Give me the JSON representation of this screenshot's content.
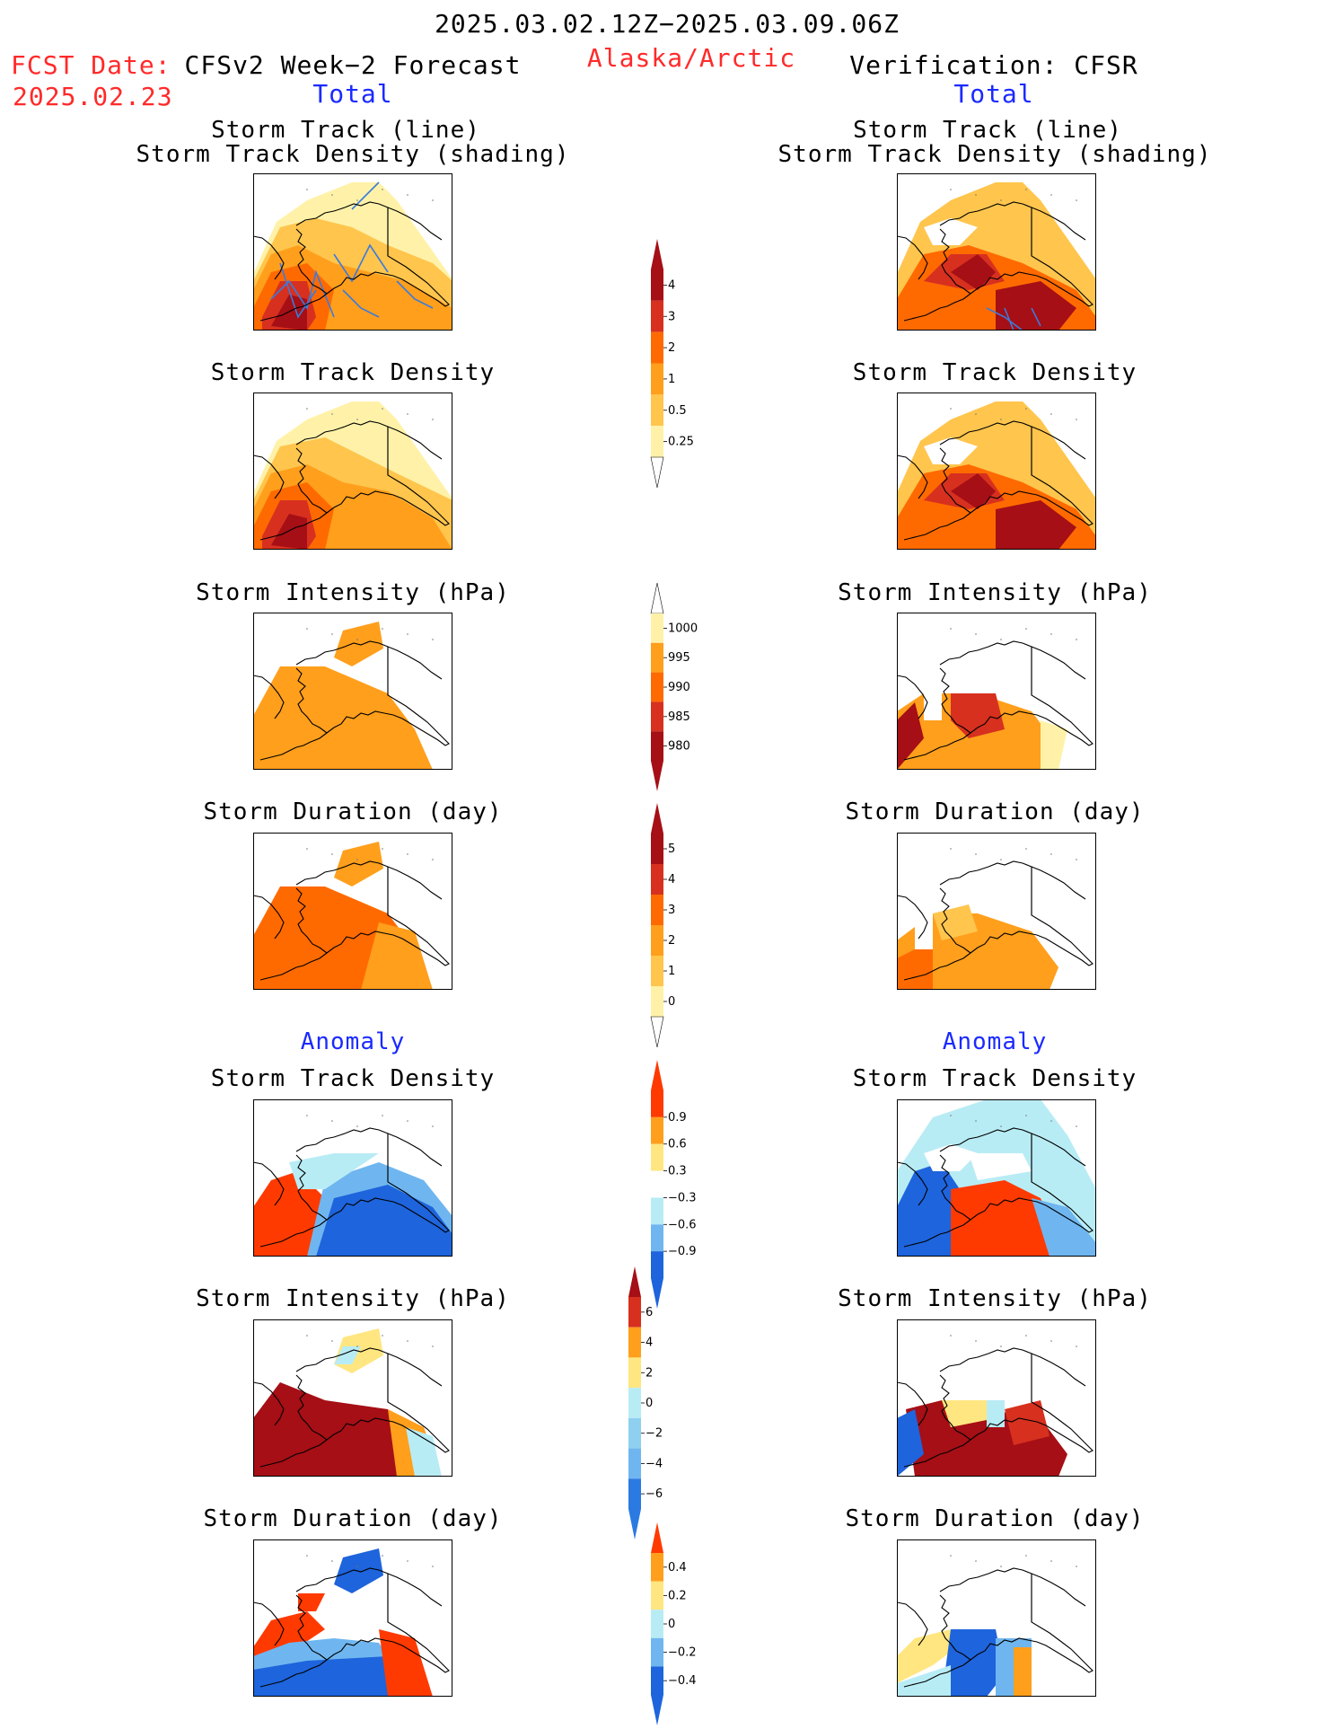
{
  "header": {
    "period": "2025.03.02.12Z−2025.03.09.06Z",
    "fcst_date_label": "FCST Date:",
    "fcst_date": "2025.02.23",
    "region": "Alaska/Arctic",
    "left_title": "CFSv2 Week−2 Forecast",
    "right_title": "Verification: CFSR",
    "left_sub": "Total",
    "right_sub": "Total"
  },
  "sections": {
    "total_left": [
      {
        "title1": "Storm Track (line)",
        "title2": "Storm Track Density (shading)"
      },
      {
        "title1": "Storm Track Density"
      },
      {
        "title1": "Storm Intensity (hPa)"
      },
      {
        "title1": "Storm Duration (day)"
      }
    ],
    "total_right": [
      {
        "title1": "Storm Track (line)",
        "title2": "Storm Track Density (shading)"
      },
      {
        "title1": "Storm Track Density"
      },
      {
        "title1": "Storm Intensity (hPa)"
      },
      {
        "title1": "Storm Duration (day)"
      }
    ],
    "anomaly_label_left": "Anomaly",
    "anomaly_label_right": "Anomaly",
    "anomaly_left": [
      {
        "title1": "Storm Track Density"
      },
      {
        "title1": "Storm Intensity (hPa)"
      },
      {
        "title1": "Storm Duration (day)"
      }
    ],
    "anomaly_right": [
      {
        "title1": "Storm Track Density"
      },
      {
        "title1": "Storm Intensity (hPa)"
      },
      {
        "title1": "Storm Duration (day)"
      }
    ]
  },
  "colorbars": [
    {
      "labels": [
        "4",
        "3",
        "2",
        "1",
        "0.5",
        "0.25"
      ],
      "colors": [
        "#a50f15",
        "#d7301f",
        "#ff6a00",
        "#ff9f1c",
        "#ffc54d",
        "#fff2a8"
      ],
      "top_arrow": "#a50f15",
      "bottom_arrow": "#ffffff"
    },
    {
      "labels": [
        "1000",
        "995",
        "990",
        "985",
        "980"
      ],
      "colors": [
        "#fff2a8",
        "#ff9f1c",
        "#ff6a00",
        "#d7301f",
        "#a50f15"
      ],
      "top_arrow": "#ffffff",
      "bottom_arrow": "#a50f15"
    },
    {
      "labels": [
        "5",
        "4",
        "3",
        "2",
        "1",
        "0"
      ],
      "colors": [
        "#a50f15",
        "#d7301f",
        "#ff6a00",
        "#ff9f1c",
        "#ffc54d",
        "#fff2a8"
      ],
      "top_arrow": "#a50f15",
      "bottom_arrow": "#ffffff"
    },
    {
      "labels": [
        "0.9",
        "0.6",
        "0.3",
        "−0.3",
        "−0.6",
        "−0.9"
      ],
      "colors": [
        "#ff3a00",
        "#ff9f1c",
        "#ffe680",
        "#ffffff",
        "#b8ecf5",
        "#6fb6f0",
        "#1e64dc"
      ],
      "top_arrow": "#ff3a00",
      "bottom_arrow": "#1e64dc"
    },
    {
      "labels": [
        "6",
        "4",
        "2",
        "0",
        "−2",
        "−4",
        "−6"
      ],
      "colors": [
        "#d7301f",
        "#ff9f1c",
        "#ffe680",
        "#b8ecf5",
        "#8fd0f0",
        "#6fb6f0",
        "#2a7ae2"
      ],
      "top_arrow": "#a50f15",
      "bottom_arrow": "#2a7ae2"
    },
    {
      "labels": [
        "0.4",
        "0.2",
        "0",
        "−0.2",
        "−0.4"
      ],
      "colors": [
        "#ff9f1c",
        "#ffe680",
        "#b8ecf5",
        "#6fb6f0",
        "#1e64dc"
      ],
      "top_arrow": "#ff3a00",
      "bottom_arrow": "#1e64dc"
    }
  ]
}
